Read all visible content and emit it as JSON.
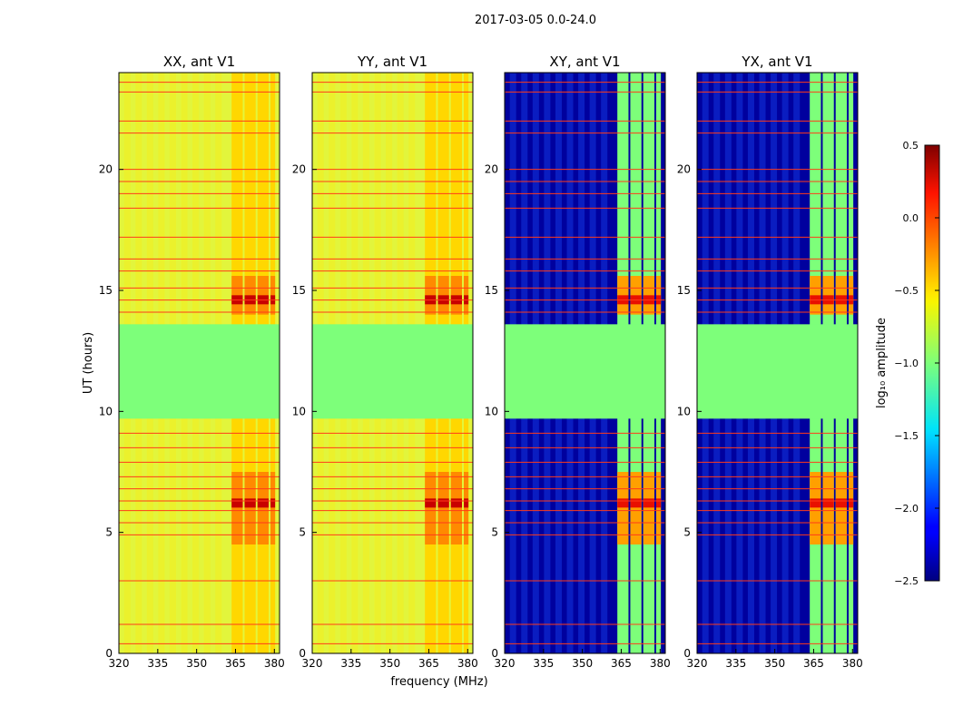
{
  "chart_data": {
    "type": "heatmap",
    "suptitle": "2017-03-05 0.0-24.0",
    "xlabel": "frequency (MHz)",
    "ylabel": "UT (hours)",
    "xlim": [
      320,
      382
    ],
    "ylim": [
      0,
      24
    ],
    "xticks": [
      320,
      335,
      350,
      365,
      380
    ],
    "yticks": [
      0,
      5,
      10,
      15,
      20
    ],
    "panels": [
      {
        "title": "XX, ant V1",
        "kind": "auto"
      },
      {
        "title": "YY, ant V1",
        "kind": "auto"
      },
      {
        "title": "XY, ant V1",
        "kind": "cross"
      },
      {
        "title": "YX, ant V1",
        "kind": "cross"
      }
    ],
    "flagged_band_UT": [
      9.7,
      13.6
    ],
    "bright_channels_MHz": [
      [
        363.5,
        368.5
      ],
      [
        368.5,
        373.5
      ],
      [
        373.5,
        378.5
      ],
      [
        378.5,
        381.0
      ]
    ],
    "rfi_lines_UT": [
      0.4,
      1.2,
      3.0,
      4.9,
      5.4,
      5.9,
      6.3,
      6.8,
      7.3,
      7.9,
      8.5,
      9.1,
      14.1,
      14.6,
      15.1,
      15.8,
      16.3,
      17.2,
      18.4,
      19.0,
      19.5,
      20.0,
      21.5,
      22.0,
      23.2,
      23.6
    ],
    "colorbar": {
      "label": "log₁₀ amplitude",
      "range": [
        -2.5,
        0.5
      ],
      "ticks": [
        "0.5",
        "0.0",
        "−0.5",
        "−1.0",
        "−1.5",
        "−2.0",
        "−2.5"
      ],
      "colormap": "jet"
    }
  }
}
